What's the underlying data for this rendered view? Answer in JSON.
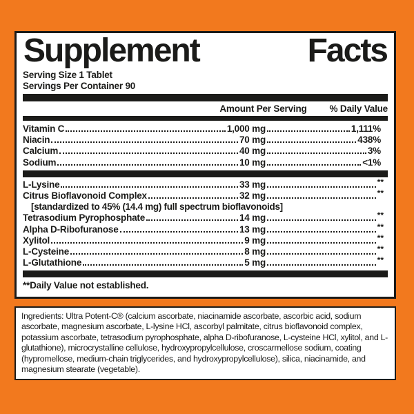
{
  "colors": {
    "background_orange": "#F2791E",
    "panel_white": "#FFFFFF",
    "ink_black": "#1B1B19"
  },
  "label": {
    "title": "Supplement Facts",
    "title_words": [
      "Supplement",
      "Facts"
    ],
    "serving_size": "Serving Size 1 Tablet",
    "servings_per_container": "Servings Per Container 90",
    "headers": {
      "amount": "Amount Per Serving",
      "daily_value": "% Daily Value"
    },
    "sections": [
      {
        "rows": [
          {
            "name": "Vitamin C",
            "amount": "1,000 mg",
            "dv": "1,111%"
          },
          {
            "name": "Niacin",
            "amount": "70 mg",
            "dv": "438%"
          },
          {
            "name": "Calcium",
            "amount": "40 mg",
            "dv": "3%"
          },
          {
            "name": "Sodium",
            "amount": "10 mg",
            "dv": "<1%"
          }
        ]
      },
      {
        "rows": [
          {
            "name": "L-Lysine",
            "amount": "33 mg",
            "dv": "**"
          },
          {
            "name": "Citrus Bioflavonoid Complex",
            "amount": "32 mg",
            "dv": "**",
            "note": "[standardized to 45% (14.4 mg) full spectrum bioflavonoids]"
          },
          {
            "name": "Tetrasodium Pyrophosphate",
            "amount": "14 mg",
            "dv": "**"
          },
          {
            "name": "Alpha D-Ribofuranose",
            "amount": "13 mg",
            "dv": "**"
          },
          {
            "name": "Xylitol",
            "amount": "9 mg",
            "dv": "**"
          },
          {
            "name": "L-Cysteine",
            "amount": "8 mg",
            "dv": "**"
          },
          {
            "name": "L-Glutathione",
            "amount": "5 mg",
            "dv": "**"
          }
        ]
      }
    ],
    "footnote": "**Daily Value not established.",
    "ingredients": "Ingredients: Ultra Potent-C® (calcium ascorbate, niacinamide ascorbate, ascorbic acid, sodium ascorbate, magnesium ascorbate, L-lysine HCl, ascorbyl palmitate, citrus bioflavonoid complex, potassium ascorbate, tetrasodium pyrophosphate, alpha D-ribofuranose, L-cysteine HCl, xylitol, and L-glutathione), microcrystalline cellulose, hydroxypropylcellulose, croscarmellose sodium, coating (hypromellose, medium-chain triglycerides, and hydroxypropylcellulose), silica, niacinamide, and magnesium stearate (vegetable)."
  }
}
